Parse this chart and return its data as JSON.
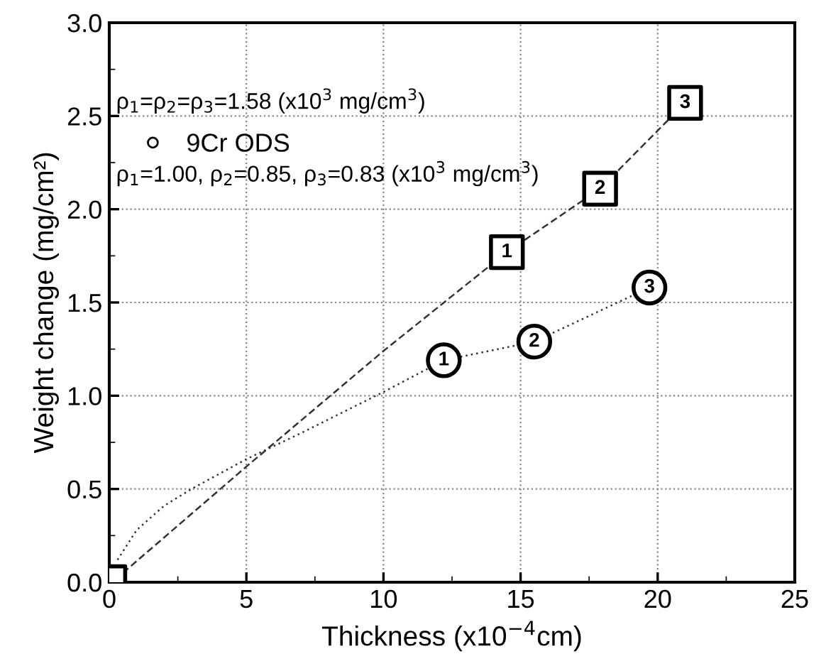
{
  "chart_data": {
    "type": "scatter",
    "xlabel": "Thickness (x10$^{−4}$cm)",
    "ylabel": "Weight change (mg/cm²)",
    "xlim": [
      0,
      25
    ],
    "ylim": [
      0,
      3.0
    ],
    "xticks": [
      0,
      5,
      10,
      15,
      20,
      25
    ],
    "yticks": [
      {
        "value": 0,
        "label": "0.0"
      },
      {
        "value": 0.5,
        "label": "0.5"
      },
      {
        "value": 1.0,
        "label": "1.0"
      },
      {
        "value": 1.5,
        "label": "1.5"
      },
      {
        "value": 2.0,
        "label": "2.0"
      },
      {
        "value": 2.5,
        "label": "2.5"
      },
      {
        "value": 3.0,
        "label": "3.0"
      }
    ],
    "grid": true,
    "legend": "top left",
    "series": [
      {
        "type": "line",
        "color": "#333333",
        "line_style": "dashed",
        "marker": "none",
        "x": [
          0.5,
          5,
          10,
          14.5,
          17.9,
          21.0
        ],
        "values": [
          0.05,
          0.62,
          1.24,
          1.77,
          2.11,
          2.57
        ]
      },
      {
        "type": "line",
        "color": "#333333",
        "line_style": "dotted",
        "marker": "none",
        "x": [
          0.3,
          1,
          2,
          3,
          5,
          7,
          10,
          12.2,
          15.5,
          19.7
        ],
        "values": [
          0.12,
          0.28,
          0.41,
          0.5,
          0.66,
          0.8,
          1.02,
          1.19,
          1.29,
          1.58
        ]
      },
      {
        "color": "#000000",
        "marker": "square",
        "x": [
          0,
          14.5,
          17.9,
          21.0
        ],
        "values": [
          0,
          1.77,
          2.11,
          2.57
        ]
      },
      {
        "name": "9Cr ODS",
        "color": "#000000",
        "marker": "circle",
        "x": [
          12.2,
          15.5,
          19.7
        ],
        "values": [
          1.19,
          1.29,
          1.58
        ]
      }
    ],
    "annotations": [
      "ρ$_{1}$=ρ$_{2}$=ρ$_{3}$=1.58 (x10$^{3}$ mg/cm$^{3}$)",
      "ρ$_{1}$=1.00, ρ$_{2}$=0.85, ρ$_{3}$=0.83 (x10$^{3}$ mg/cm$^{3}$)",
      {
        "text": "1",
        "x": 14.5,
        "y": 1.77
      },
      {
        "text": "2",
        "x": 17.9,
        "y": 2.11
      },
      {
        "text": "3",
        "x": 21.0,
        "y": 2.57
      },
      {
        "text": "1",
        "x": 12.2,
        "y": 1.19
      },
      {
        "text": "2",
        "x": 15.5,
        "y": 1.29
      },
      {
        "text": "3",
        "x": 19.7,
        "y": 1.58
      }
    ]
  }
}
